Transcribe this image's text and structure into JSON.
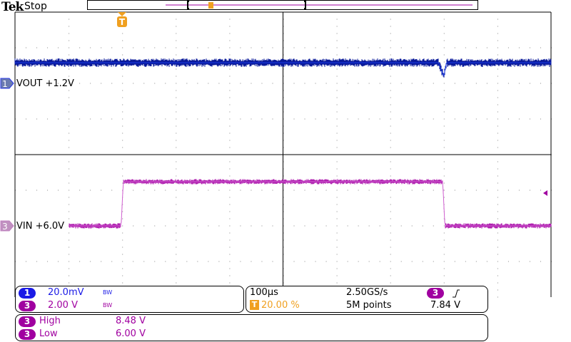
{
  "header": {
    "brand": "Tek",
    "status": "Stop"
  },
  "colors": {
    "ch1": "#1a1ae6",
    "ch1_trace": "#0a1a9a",
    "ch3": "#a000a0",
    "ch3_trace": "#b020b0",
    "trigger": "#f0a020"
  },
  "channels": [
    {
      "number": "1",
      "label": "VOUT +1.2V",
      "scale": "20.0mV",
      "bw": "BW"
    },
    {
      "number": "3",
      "label": "VIN +6.0V",
      "scale": "2.00 V",
      "bw": "BW"
    }
  ],
  "timebase": {
    "scale": "100µs",
    "trigger_position": "20.00 %",
    "sample_rate": "2.50GS/s",
    "record_length": "5M points",
    "trigger_source": "3",
    "trigger_slope": "rising",
    "trigger_level": "7.84 V",
    "trigger_icon": "T"
  },
  "measurements": [
    {
      "source": "3",
      "name": "High",
      "value": "8.48 V"
    },
    {
      "source": "3",
      "name": "Low",
      "value": "6.00 V"
    }
  ],
  "chart_data": {
    "type": "line",
    "xlabel": "",
    "ylabel": "",
    "x_unit": "µs",
    "xlim": [
      -200,
      800
    ],
    "grid": true,
    "series": [
      {
        "name": "VOUT",
        "channel": 1,
        "unit": "mV offset from 1.2V",
        "points": [
          [
            -200,
            11.6
          ],
          [
            0,
            11.6
          ],
          [
            590,
            11.6
          ],
          [
            600,
            4
          ],
          [
            605,
            11.6
          ],
          [
            800,
            11.6
          ]
        ]
      },
      {
        "name": "VIN",
        "channel": 3,
        "unit": "V",
        "points": [
          [
            -200,
            6.0
          ],
          [
            -2,
            6.0
          ],
          [
            2,
            8.48
          ],
          [
            598,
            8.48
          ],
          [
            602,
            6.0
          ],
          [
            800,
            6.0
          ]
        ]
      }
    ]
  }
}
